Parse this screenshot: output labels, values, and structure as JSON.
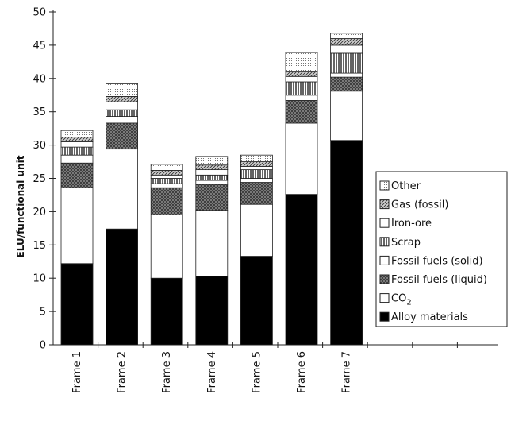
{
  "chart_data": {
    "type": "bar",
    "stacked": true,
    "ylabel": "ELU/functional unit",
    "ylim": [
      0,
      50
    ],
    "yticks": [
      0,
      5,
      10,
      15,
      20,
      25,
      30,
      35,
      40,
      45,
      50
    ],
    "categories": [
      "Frame 1",
      "Frame 2",
      "Frame 3",
      "Frame 4",
      "Frame 5",
      "Frame 6",
      "Frame 7"
    ],
    "series": [
      {
        "name": "Alloy materials",
        "pattern": "solid-black",
        "values": [
          12.2,
          17.4,
          10.0,
          10.3,
          13.3,
          22.6,
          30.7
        ]
      },
      {
        "name": "CO2",
        "pattern": "white",
        "values": [
          11.4,
          12.0,
          9.5,
          9.9,
          7.8,
          10.7,
          7.4
        ]
      },
      {
        "name": "Fossil fuels (liquid)",
        "pattern": "crosshatch-grey",
        "values": [
          3.7,
          3.9,
          4.1,
          3.9,
          3.3,
          3.4,
          2.1
        ]
      },
      {
        "name": "Fossil fuels (solid)",
        "pattern": "white",
        "values": [
          1.2,
          1.0,
          0.6,
          0.6,
          0.6,
          0.8,
          0.6
        ]
      },
      {
        "name": "Scrap",
        "pattern": "vertical-lines",
        "values": [
          1.2,
          1.0,
          0.8,
          0.8,
          1.3,
          2.0,
          3.0
        ]
      },
      {
        "name": "Iron-ore",
        "pattern": "white",
        "values": [
          0.8,
          1.2,
          0.5,
          0.8,
          0.5,
          0.8,
          1.2
        ]
      },
      {
        "name": "Gas (fossil)",
        "pattern": "diagonal-hatch",
        "values": [
          0.7,
          0.8,
          0.7,
          0.7,
          0.7,
          0.8,
          1.0
        ]
      },
      {
        "name": "Other",
        "pattern": "dotted",
        "values": [
          1.0,
          1.9,
          0.9,
          1.3,
          1.0,
          2.8,
          0.8
        ]
      }
    ],
    "legend": {
      "position": "right",
      "entries": [
        "Other",
        "Gas (fossil)",
        "Iron-ore",
        "Scrap",
        "Fossil fuels (solid)",
        "Fossil fuels (liquid)",
        "CO",
        "Alloy materials"
      ],
      "co2_subscript": "2"
    }
  }
}
